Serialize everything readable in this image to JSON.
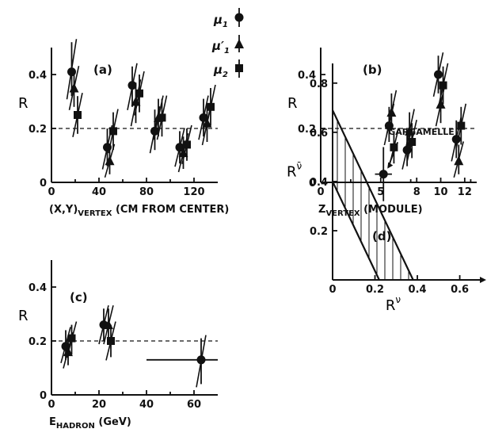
{
  "legend": [
    {
      "symbol": "circle",
      "label_main": "μ",
      "label_sub": "1",
      "label_prime": ""
    },
    {
      "symbol": "triangle",
      "label_main": "μ",
      "label_sub": "1",
      "label_prime": "′"
    },
    {
      "symbol": "square",
      "label_main": "μ",
      "label_sub": "2",
      "label_prime": ""
    }
  ],
  "chart_data": [
    {
      "panel": "(a)",
      "type": "scatter",
      "ylabel": "R",
      "xlabel_main": "(X,Y)",
      "xlabel_sub": "VERTEX",
      "xlabel_rest": " (CM FROM CENTER)",
      "xlim": [
        0,
        140
      ],
      "ylim": [
        0,
        0.5
      ],
      "xticks": [
        0,
        40,
        80,
        120
      ],
      "yticks": [
        0,
        0.2,
        0.4
      ],
      "reference_line": 0.2,
      "series": [
        {
          "symbol": "circle",
          "points": [
            {
              "x": 17,
              "y": 0.41,
              "lo": 0.32,
              "hi": 0.52
            },
            {
              "x": 47,
              "y": 0.13,
              "lo": 0.06,
              "hi": 0.2
            },
            {
              "x": 68,
              "y": 0.36,
              "lo": 0.28,
              "hi": 0.43
            },
            {
              "x": 87,
              "y": 0.19,
              "lo": 0.12,
              "hi": 0.27
            },
            {
              "x": 108,
              "y": 0.13,
              "lo": 0.07,
              "hi": 0.19
            },
            {
              "x": 128,
              "y": 0.24,
              "lo": 0.17,
              "hi": 0.31
            }
          ]
        },
        {
          "symbol": "triangle",
          "points": [
            {
              "x": 19,
              "y": 0.35,
              "lo": 0.28,
              "hi": 0.42
            },
            {
              "x": 49,
              "y": 0.08,
              "lo": 0.03,
              "hi": 0.13
            },
            {
              "x": 71,
              "y": 0.3,
              "lo": 0.22,
              "hi": 0.37
            },
            {
              "x": 90,
              "y": 0.24,
              "lo": 0.17,
              "hi": 0.31
            },
            {
              "x": 111,
              "y": 0.11,
              "lo": 0.05,
              "hi": 0.17
            },
            {
              "x": 131,
              "y": 0.22,
              "lo": 0.15,
              "hi": 0.29
            }
          ]
        },
        {
          "symbol": "square",
          "points": [
            {
              "x": 22,
              "y": 0.25,
              "lo": 0.18,
              "hi": 0.32
            },
            {
              "x": 52,
              "y": 0.19,
              "lo": 0.12,
              "hi": 0.26
            },
            {
              "x": 74,
              "y": 0.33,
              "lo": 0.26,
              "hi": 0.4
            },
            {
              "x": 93,
              "y": 0.24,
              "lo": 0.17,
              "hi": 0.31
            },
            {
              "x": 114,
              "y": 0.14,
              "lo": 0.08,
              "hi": 0.2
            },
            {
              "x": 134,
              "y": 0.28,
              "lo": 0.21,
              "hi": 0.35
            }
          ]
        }
      ]
    },
    {
      "panel": "(b)",
      "type": "scatter",
      "ylabel": "R",
      "xlabel_main": "Z",
      "xlabel_sub": "VERTEX",
      "xlabel_rest": " (MODULE)",
      "xlim": [
        0,
        13
      ],
      "ylim": [
        0,
        0.5
      ],
      "xticks": [
        0,
        5,
        8,
        10,
        12
      ],
      "yticks": [
        0,
        0.2,
        0.4
      ],
      "reference_line": 0.2,
      "series": [
        {
          "symbol": "circle",
          "points": [
            {
              "x": 5.7,
              "y": 0.21,
              "lo": 0.15,
              "hi": 0.28
            },
            {
              "x": 7.2,
              "y": 0.12,
              "lo": 0.06,
              "hi": 0.19
            },
            {
              "x": 9.8,
              "y": 0.4,
              "lo": 0.33,
              "hi": 0.47
            },
            {
              "x": 11.3,
              "y": 0.16,
              "lo": 0.09,
              "hi": 0.23
            }
          ]
        },
        {
          "symbol": "triangle",
          "points": [
            {
              "x": 5.9,
              "y": 0.26,
              "lo": 0.19,
              "hi": 0.33
            },
            {
              "x": 7.4,
              "y": 0.19,
              "lo": 0.12,
              "hi": 0.26
            },
            {
              "x": 10.0,
              "y": 0.29,
              "lo": 0.22,
              "hi": 0.36
            },
            {
              "x": 11.5,
              "y": 0.08,
              "lo": 0.03,
              "hi": 0.14
            }
          ]
        },
        {
          "symbol": "square",
          "points": [
            {
              "x": 6.1,
              "y": 0.13,
              "lo": 0.07,
              "hi": 0.19
            },
            {
              "x": 7.6,
              "y": 0.15,
              "lo": 0.09,
              "hi": 0.22
            },
            {
              "x": 10.2,
              "y": 0.36,
              "lo": 0.29,
              "hi": 0.43
            },
            {
              "x": 11.7,
              "y": 0.21,
              "lo": 0.14,
              "hi": 0.28
            }
          ]
        }
      ]
    },
    {
      "panel": "(c)",
      "type": "scatter",
      "ylabel": "R",
      "xlabel_main": "E",
      "xlabel_sub": "HADRON",
      "xlabel_rest": " (GeV)",
      "xlim": [
        0,
        70
      ],
      "ylim": [
        0,
        0.5
      ],
      "xticks": [
        0,
        20,
        40,
        60
      ],
      "yticks": [
        0,
        0.2,
        0.4
      ],
      "reference_line": 0.2,
      "series": [
        {
          "symbol": "circle",
          "points": [
            {
              "x": 6,
              "y": 0.18,
              "lo": 0.13,
              "hi": 0.24
            },
            {
              "x": 22,
              "y": 0.26,
              "lo": 0.2,
              "hi": 0.32
            },
            {
              "x": 63,
              "y": 0.13,
              "lo": 0.04,
              "hi": 0.21,
              "xlo": 40,
              "xhi": 70
            }
          ]
        },
        {
          "symbol": "triangle",
          "points": [
            {
              "x": 7,
              "y": 0.16,
              "lo": 0.11,
              "hi": 0.22
            },
            {
              "x": 24,
              "y": 0.26,
              "lo": 0.2,
              "hi": 0.32
            }
          ]
        },
        {
          "symbol": "square",
          "points": [
            {
              "x": 8.5,
              "y": 0.21,
              "lo": 0.15,
              "hi": 0.26
            },
            {
              "x": 25,
              "y": 0.2,
              "lo": 0.14,
              "hi": 0.26
            }
          ]
        }
      ]
    },
    {
      "panel": "(d)",
      "type": "scatter",
      "ylabel_main": "R",
      "ylabel_sup": "ν̄",
      "xlabel_main": "R",
      "xlabel_sup": "ν",
      "xlim": [
        0,
        0.68
      ],
      "ylim": [
        0,
        0.88
      ],
      "xticks": [
        0,
        0.2,
        0.4,
        0.6
      ],
      "yticks": [
        0.2,
        0.4,
        0.6,
        0.8
      ],
      "allowed_band": {
        "outer": [
          [
            0,
            0.69
          ],
          [
            0.38,
            0
          ]
        ],
        "inner": [
          [
            0,
            0.4
          ],
          [
            0.22,
            0
          ]
        ]
      },
      "point": {
        "label": "GARGAMELLE",
        "x": 0.24,
        "y": 0.43,
        "xlo": 0.2,
        "xhi": 0.28,
        "lo": 0.32,
        "hi": 0.54
      }
    }
  ]
}
